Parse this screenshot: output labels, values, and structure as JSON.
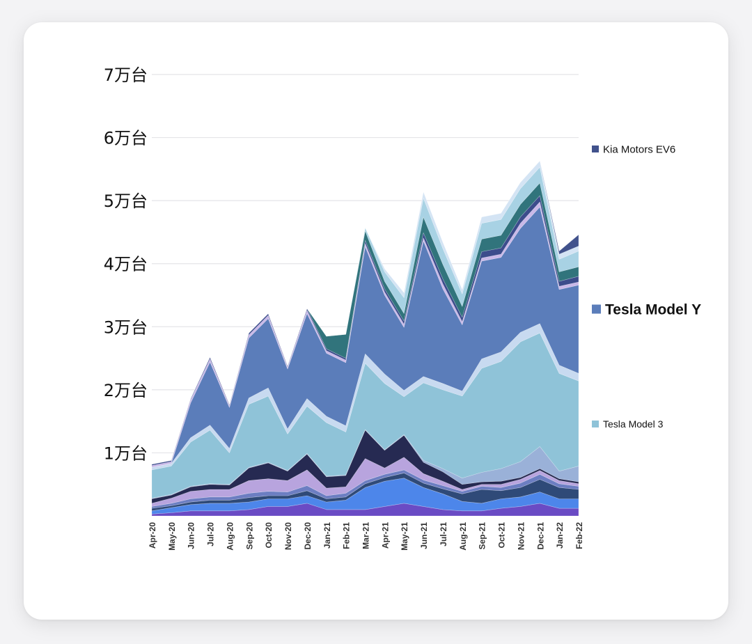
{
  "chart_data": {
    "type": "area",
    "stacked": true,
    "title": "",
    "xlabel": "",
    "ylabel": "",
    "ylim": [
      0,
      70000
    ],
    "y_ticks": [
      {
        "value": 10000,
        "label": "1万台"
      },
      {
        "value": 20000,
        "label": "2万台"
      },
      {
        "value": 30000,
        "label": "3万台"
      },
      {
        "value": 40000,
        "label": "4万台"
      },
      {
        "value": 50000,
        "label": "5万台"
      },
      {
        "value": 60000,
        "label": "6万台"
      },
      {
        "value": 70000,
        "label": "7万台"
      }
    ],
    "grid": true,
    "legend_position": "right",
    "categories": [
      "Apr-20",
      "May-20",
      "Jun-20",
      "Jul-20",
      "Aug-20",
      "Sep-20",
      "Oct-20",
      "Nov-20",
      "Dec-20",
      "Jan-21",
      "Feb-21",
      "Mar-21",
      "Apr-21",
      "May-21",
      "Jun-21",
      "Jul-21",
      "Aug-21",
      "Sep-21",
      "Oct-21",
      "Nov-21",
      "Dec-21",
      "Jan-22",
      "Feb-22"
    ],
    "series": [
      {
        "color": "#6a4bc4",
        "values": [
          300,
          500,
          800,
          800,
          800,
          1000,
          1500,
          1500,
          2000,
          1000,
          1000,
          1000,
          1500,
          2000,
          1500,
          1000,
          800,
          800,
          1200,
          1500,
          2000,
          1200,
          1200
        ]
      },
      {
        "color": "#4d86ea",
        "values": [
          500,
          800,
          1000,
          1200,
          1200,
          1200,
          1200,
          1200,
          1200,
          1200,
          1500,
          3500,
          4000,
          4000,
          3000,
          2500,
          1500,
          1200,
          1500,
          1500,
          1800,
          1500,
          1500
        ]
      },
      {
        "color": "#2f4a78",
        "values": [
          400,
          300,
          400,
          500,
          500,
          700,
          500,
          500,
          800,
          500,
          500,
          600,
          600,
          800,
          700,
          800,
          1200,
          2200,
          1300,
          1500,
          2000,
          1800,
          1500
        ]
      },
      {
        "color": "#6c7ec2",
        "values": [
          300,
          400,
          500,
          500,
          500,
          700,
          700,
          600,
          800,
          500,
          600,
          500,
          500,
          500,
          500,
          500,
          400,
          500,
          500,
          700,
          800,
          600,
          500
        ]
      },
      {
        "color": "#b8a4de",
        "values": [
          500,
          800,
          1200,
          1200,
          1200,
          2000,
          2000,
          1800,
          2500,
          1200,
          1000,
          3500,
          1000,
          2000,
          1000,
          700,
          300,
          300,
          500,
          600,
          600,
          500,
          400
        ]
      },
      {
        "color": "#262a52",
        "values": [
          700,
          500,
          700,
          800,
          700,
          2000,
          2500,
          1500,
          2500,
          1800,
          1800,
          4500,
          2800,
          3500,
          1800,
          1500,
          800,
          400,
          500,
          300,
          300,
          300,
          300
        ]
      },
      {
        "color": "#9ab1d8",
        "values": [
          100,
          100,
          100,
          100,
          100,
          100,
          100,
          100,
          100,
          100,
          100,
          100,
          100,
          100,
          300,
          500,
          1000,
          1500,
          2000,
          2500,
          3500,
          1200,
          2500
        ]
      },
      {
        "color": "#8fc3d8",
        "values": [
          4500,
          4500,
          7000,
          8500,
          5000,
          10000,
          10500,
          5800,
          7500,
          8500,
          6800,
          10500,
          10500,
          6000,
          12300,
          12500,
          13000,
          16500,
          17000,
          19000,
          18000,
          15500,
          13500
        ]
      },
      {
        "color": "#c8daf0",
        "values": [
          400,
          400,
          700,
          800,
          700,
          1000,
          1300,
          800,
          1200,
          1000,
          1000,
          1500,
          1500,
          1000,
          1000,
          1000,
          800,
          1500,
          1500,
          1500,
          1500,
          1300,
          1200
        ]
      },
      {
        "color": "#5b7dba",
        "values": [
          0,
          0,
          5500,
          10000,
          6500,
          9500,
          11000,
          9500,
          13500,
          10000,
          10000,
          17000,
          12500,
          10000,
          21500,
          15000,
          10500,
          15500,
          15000,
          16500,
          18500,
          12000,
          14000
        ]
      },
      {
        "color": "#c9b8e8",
        "values": [
          300,
          300,
          500,
          500,
          300,
          500,
          500,
          300,
          500,
          400,
          400,
          500,
          500,
          500,
          500,
          800,
          500,
          500,
          500,
          800,
          800,
          500,
          500
        ]
      },
      {
        "color": "#3c4c8c",
        "values": [
          200,
          200,
          200,
          300,
          200,
          300,
          300,
          200,
          300,
          300,
          300,
          500,
          500,
          500,
          800,
          800,
          700,
          1000,
          1000,
          1000,
          1000,
          800,
          900
        ]
      },
      {
        "color": "#31747c",
        "values": [
          0,
          0,
          0,
          0,
          0,
          0,
          0,
          0,
          0,
          2000,
          3800,
          1500,
          1200,
          1200,
          2500,
          2300,
          1700,
          2000,
          2000,
          2000,
          2000,
          1500,
          1500
        ]
      },
      {
        "color": "#a8d2e4",
        "values": [
          0,
          0,
          0,
          0,
          0,
          0,
          0,
          0,
          0,
          0,
          0,
          500,
          1500,
          2500,
          3000,
          2500,
          2000,
          2500,
          2500,
          2500,
          2500,
          2000,
          2500
        ]
      },
      {
        "color": "#d4e4f4",
        "values": [
          0,
          0,
          0,
          0,
          0,
          0,
          0,
          0,
          0,
          0,
          0,
          0,
          500,
          800,
          1000,
          1000,
          700,
          1000,
          1000,
          1000,
          1000,
          800,
          800
        ]
      },
      {
        "name": "Kia Motors EV6",
        "color": "#41528c",
        "values": [
          0,
          0,
          0,
          0,
          0,
          0,
          0,
          0,
          0,
          0,
          0,
          0,
          0,
          0,
          0,
          0,
          0,
          0,
          0,
          0,
          0,
          500,
          1800
        ]
      }
    ],
    "legend": [
      {
        "label": "Kia Motors EV6",
        "color": "#41528c"
      },
      {
        "label": "Tesla Model Y",
        "color": "#5b7dba"
      },
      {
        "label": "Tesla Model 3",
        "color": "#8fc3d8"
      }
    ]
  }
}
